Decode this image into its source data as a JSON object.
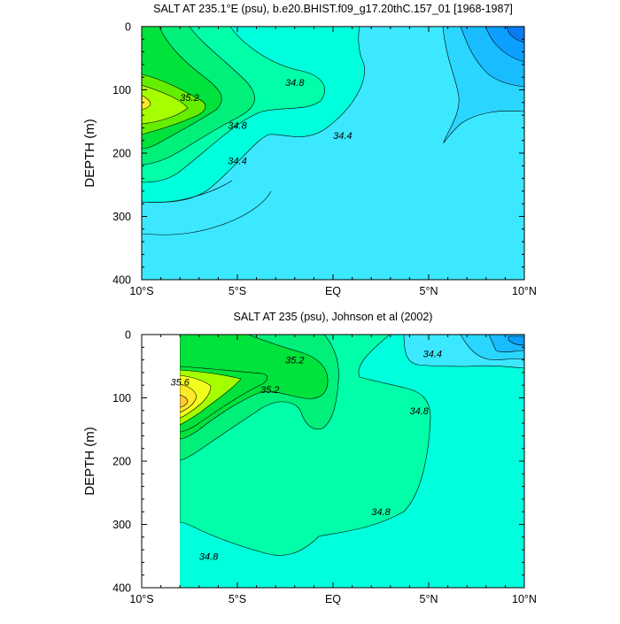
{
  "chart_data": [
    {
      "type": "contour",
      "title": "SALT AT 235.1°E (psu), b.e20.BHIST.f09_g17.20thC.157_01 [1968-1987]",
      "ylabel": "DEPTH (m)",
      "xlabel": "",
      "xlim": [
        -10,
        10
      ],
      "ylim": [
        400,
        0
      ],
      "x_ticks": [
        {
          "value": -10,
          "label": "10°S"
        },
        {
          "value": -5,
          "label": "5°S"
        },
        {
          "value": 0,
          "label": "EQ"
        },
        {
          "value": 5,
          "label": "5°N"
        },
        {
          "value": 10,
          "label": "10°N"
        }
      ],
      "y_ticks": [
        0,
        100,
        200,
        300,
        400
      ],
      "contour_labels": [
        {
          "text": "34.8",
          "x": -2.0,
          "y": 88
        },
        {
          "text": "35.2",
          "x": -7.5,
          "y": 112
        },
        {
          "text": "34.8",
          "x": -5.0,
          "y": 156
        },
        {
          "text": "34.4",
          "x": -5.0,
          "y": 212
        },
        {
          "text": "34.4",
          "x": 0.5,
          "y": 172
        }
      ]
    },
    {
      "type": "contour",
      "title": "SALT AT 235 (psu), Johnson et al (2002)",
      "ylabel": "DEPTH (m)",
      "xlabel": "",
      "xlim": [
        -10,
        10
      ],
      "ylim": [
        400,
        0
      ],
      "x_ticks": [
        {
          "value": -10,
          "label": "10°S"
        },
        {
          "value": -5,
          "label": "5°S"
        },
        {
          "value": 0,
          "label": "EQ"
        },
        {
          "value": 5,
          "label": "5°N"
        },
        {
          "value": 10,
          "label": "10°N"
        }
      ],
      "y_ticks": [
        0,
        100,
        200,
        300,
        400
      ],
      "contour_labels": [
        {
          "text": "35.6",
          "x": -8.0,
          "y": 75
        },
        {
          "text": "35.2",
          "x": -2.0,
          "y": 40
        },
        {
          "text": "35.2",
          "x": -3.3,
          "y": 87
        },
        {
          "text": "34.4",
          "x": 5.2,
          "y": 30
        },
        {
          "text": "34.8",
          "x": 4.5,
          "y": 120
        },
        {
          "text": "34.8",
          "x": 2.5,
          "y": 280
        },
        {
          "text": "34.8",
          "x": -6.5,
          "y": 350
        }
      ]
    }
  ],
  "colors": {
    "c343": "#3ce8ff",
    "c344": "#2ad6ff",
    "c345": "#19bcff",
    "c346": "#0c9fff",
    "c347": "#0a7cf2",
    "c348": "#00ffdc",
    "c349": "#00ffa8",
    "c350": "#00f07a",
    "c351": "#00e23c",
    "c352": "#66ee00",
    "c353": "#a6ff00",
    "c354": "#f2ff1e",
    "c355": "#ffea28",
    "c356": "#ffc832"
  }
}
